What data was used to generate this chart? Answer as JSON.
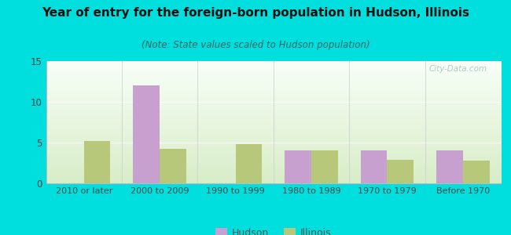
{
  "title": "Year of entry for the foreign-born population in Hudson, Illinois",
  "subtitle": "(Note: State values scaled to Hudson population)",
  "categories": [
    "2010 or later",
    "2000 to 2009",
    "1990 to 1999",
    "1980 to 1989",
    "1970 to 1979",
    "Before 1970"
  ],
  "hudson_values": [
    0,
    12,
    0,
    4,
    4,
    4
  ],
  "illinois_values": [
    5.2,
    4.2,
    4.8,
    4.0,
    2.9,
    2.8
  ],
  "hudson_color": "#c8a0d0",
  "illinois_color": "#b8c87a",
  "background_outer": "#00dede",
  "ylim": [
    0,
    15
  ],
  "yticks": [
    0,
    5,
    10,
    15
  ],
  "bar_width": 0.35,
  "watermark": "City-Data.com",
  "legend_hudson": "Hudson",
  "legend_illinois": "Illinois",
  "title_fontsize": 11,
  "subtitle_fontsize": 8.5,
  "tick_fontsize": 8,
  "legend_fontsize": 9
}
